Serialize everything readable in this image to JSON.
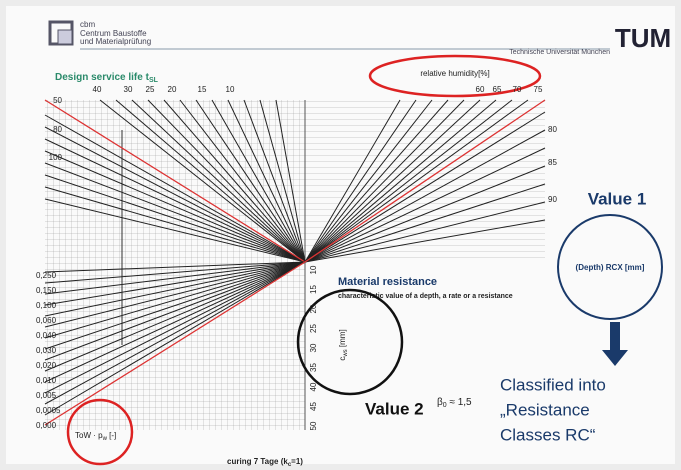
{
  "header": {
    "org": [
      "cbm",
      "Centrum Baustoffe",
      "und Materialprüfung"
    ],
    "university": "Technische Universität München",
    "logo": "TUM"
  },
  "nomogram": {
    "title": "Design service life t",
    "title_sub": "SL",
    "humidity_label": "relative humidity[%]",
    "top_ticks": [
      "40",
      "30",
      "25",
      "20",
      "15",
      "10"
    ],
    "left_ticks": [
      "50",
      "80",
      "100"
    ],
    "humidity_ticks": [
      "60",
      "65",
      "70",
      "75"
    ],
    "right_ticks": [
      "80",
      "85",
      "90"
    ],
    "lower_left_ticks": [
      "0,250",
      "0,150",
      "0,100",
      "0,060",
      "0,040",
      "0,030",
      "0,020",
      "0,010",
      "0,005",
      "0,0005",
      "0,000"
    ],
    "center_ticks": [
      "10",
      "15",
      "20",
      "25",
      "30",
      "35",
      "40",
      "45",
      "50"
    ],
    "material_title": "Material resistance",
    "material_subtitle": "characteristic value of a depth, a rate or a resistance",
    "axis_symbol": "c",
    "axis_sub": "ws",
    "axis_unit": " [mm]",
    "tow_main": "ToW · p",
    "tow_sub": "w",
    "tow_unit": " [-]",
    "beta_main": "β",
    "beta_sub": "0",
    "beta_rest": " ≈ 1,5",
    "footer_main": "curing 7 Tage (k",
    "footer_sub": "c",
    "footer_rest": "=1)"
  },
  "annotations": {
    "value1": "Value 1",
    "rcx": "(Depth) RCX [mm]",
    "value2": "Value 2",
    "classified": [
      "Classified into",
      "„Resistance",
      "Classes RC“"
    ]
  }
}
